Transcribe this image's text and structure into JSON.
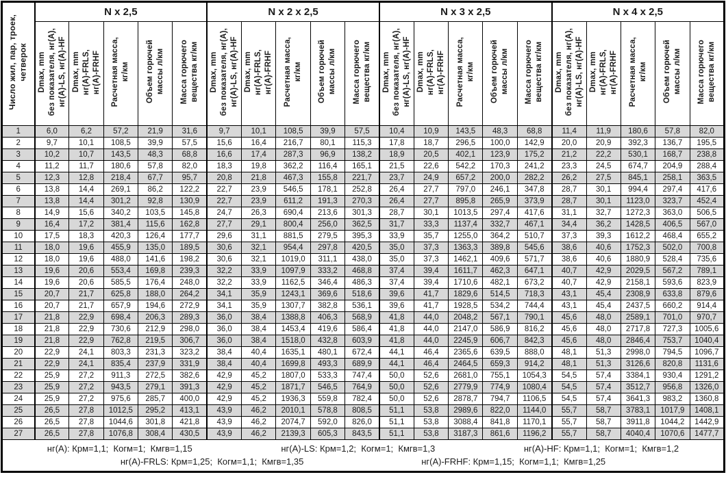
{
  "table": {
    "row_header": "Число жил, пар, троек,\nчетверок",
    "groups": [
      "N x 2,5",
      "N x 2 x 2,5",
      "N x 3 x 2,5",
      "N x 4 x 2,5"
    ],
    "col_headers": [
      "Dmax, mm\nбез показателя, нг(А),\nнг(А)-LS, нг(А)-HF",
      "Dmax, mm\nнг(А)-FRLS,\nнг(А)-FRHF",
      "Расчетная масса,\nкг/км",
      "Объем горючей\nмассы л/км",
      "Масса горючего\nвещества кг/км"
    ],
    "rows": [
      [
        "1",
        "6,0",
        "6,2",
        "57,2",
        "21,9",
        "31,6",
        "9,7",
        "10,1",
        "108,5",
        "39,9",
        "57,5",
        "10,4",
        "10,9",
        "143,5",
        "48,3",
        "68,8",
        "11,4",
        "11,9",
        "180,6",
        "57,8",
        "82,0"
      ],
      [
        "2",
        "9,7",
        "10,1",
        "108,5",
        "39,9",
        "57,5",
        "15,6",
        "16,4",
        "216,7",
        "80,1",
        "115,3",
        "17,8",
        "18,7",
        "296,5",
        "100,0",
        "142,9",
        "20,0",
        "20,9",
        "392,3",
        "136,7",
        "195,5"
      ],
      [
        "3",
        "10,2",
        "10,7",
        "143,5",
        "48,3",
        "68,8",
        "16,6",
        "17,4",
        "287,3",
        "96,9",
        "138,2",
        "18,9",
        "20,5",
        "402,1",
        "123,9",
        "175,2",
        "21,2",
        "22,2",
        "530,1",
        "168,7",
        "238,8"
      ],
      [
        "4",
        "11,2",
        "11,7",
        "180,6",
        "57,8",
        "82,0",
        "18,3",
        "19,8",
        "362,2",
        "116,4",
        "165,1",
        "21,5",
        "22,6",
        "542,2",
        "170,3",
        "241,2",
        "23,3",
        "24,5",
        "674,7",
        "204,9",
        "288,4"
      ],
      [
        "5",
        "12,3",
        "12,8",
        "218,4",
        "67,7",
        "95,7",
        "20,8",
        "21,8",
        "467,3",
        "155,8",
        "221,7",
        "23,7",
        "24,9",
        "657,2",
        "200,0",
        "282,2",
        "26,2",
        "27,5",
        "845,1",
        "258,1",
        "363,5"
      ],
      [
        "6",
        "13,8",
        "14,4",
        "269,1",
        "86,2",
        "122,2",
        "22,7",
        "23,9",
        "546,5",
        "178,1",
        "252,8",
        "26,4",
        "27,7",
        "797,0",
        "246,1",
        "347,8",
        "28,7",
        "30,1",
        "994,4",
        "297,4",
        "417,6"
      ],
      [
        "7",
        "13,8",
        "14,4",
        "301,2",
        "92,8",
        "130,9",
        "22,7",
        "23,9",
        "611,2",
        "191,3",
        "270,3",
        "26,4",
        "27,7",
        "895,8",
        "265,9",
        "373,9",
        "28,7",
        "30,1",
        "1123,0",
        "323,7",
        "452,4"
      ],
      [
        "8",
        "14,9",
        "15,6",
        "340,2",
        "103,5",
        "145,8",
        "24,7",
        "26,3",
        "690,4",
        "213,6",
        "301,3",
        "28,7",
        "30,1",
        "1013,5",
        "297,4",
        "417,6",
        "31,1",
        "32,7",
        "1272,3",
        "363,0",
        "506,5"
      ],
      [
        "9",
        "16,4",
        "17,2",
        "381,4",
        "115,6",
        "162,8",
        "27,7",
        "29,1",
        "800,4",
        "256,0",
        "362,5",
        "31,7",
        "33,3",
        "1137,4",
        "332,7",
        "467,1",
        "34,4",
        "36,2",
        "1428,5",
        "406,5",
        "567,0"
      ],
      [
        "10",
        "17,5",
        "18,3",
        "420,3",
        "126,4",
        "177,7",
        "29,6",
        "31,1",
        "881,5",
        "279,5",
        "395,3",
        "33,9",
        "35,7",
        "1255,0",
        "364,2",
        "510,7",
        "37,3",
        "39,3",
        "1612,2",
        "468,4",
        "655,2"
      ],
      [
        "11",
        "18,0",
        "19,6",
        "455,9",
        "135,0",
        "189,5",
        "30,6",
        "32,1",
        "954,4",
        "297,8",
        "420,5",
        "35,0",
        "37,3",
        "1363,3",
        "389,8",
        "545,6",
        "38,6",
        "40,6",
        "1752,3",
        "502,0",
        "700,8"
      ],
      [
        "12",
        "18,0",
        "19,6",
        "488,0",
        "141,6",
        "198,2",
        "30,6",
        "32,1",
        "1019,0",
        "311,1",
        "438,0",
        "35,0",
        "37,3",
        "1462,1",
        "409,6",
        "571,7",
        "38,6",
        "40,6",
        "1880,9",
        "528,4",
        "735,6"
      ],
      [
        "13",
        "19,6",
        "20,6",
        "553,4",
        "169,8",
        "239,3",
        "32,2",
        "33,9",
        "1097,9",
        "333,2",
        "468,8",
        "37,4",
        "39,4",
        "1611,7",
        "462,3",
        "647,1",
        "40,7",
        "42,9",
        "2029,5",
        "567,2",
        "789,1"
      ],
      [
        "14",
        "19,6",
        "20,6",
        "585,5",
        "176,4",
        "248,0",
        "32,2",
        "33,9",
        "1162,5",
        "346,4",
        "486,3",
        "37,4",
        "39,4",
        "1710,6",
        "482,1",
        "673,2",
        "40,7",
        "42,9",
        "2158,1",
        "593,6",
        "823,9"
      ],
      [
        "15",
        "20,7",
        "21,7",
        "625,8",
        "188,0",
        "264,2",
        "34,1",
        "35,9",
        "1243,1",
        "369,6",
        "518,6",
        "39,6",
        "41,7",
        "1829,6",
        "514,5",
        "718,3",
        "43,1",
        "45,4",
        "2308,9",
        "633,8",
        "879,6"
      ],
      [
        "16",
        "20,7",
        "21,7",
        "657,9",
        "194,6",
        "272,9",
        "34,1",
        "35,9",
        "1307,7",
        "382,8",
        "536,1",
        "39,6",
        "41,7",
        "1928,5",
        "534,2",
        "744,4",
        "43,1",
        "45,4",
        "2437,5",
        "660,2",
        "914,4"
      ],
      [
        "17",
        "21,8",
        "22,9",
        "698,4",
        "206,3",
        "289,3",
        "36,0",
        "38,4",
        "1388,8",
        "406,3",
        "568,9",
        "41,8",
        "44,0",
        "2048,2",
        "567,1",
        "790,1",
        "45,6",
        "48,0",
        "2589,1",
        "701,0",
        "970,7"
      ],
      [
        "18",
        "21,8",
        "22,9",
        "730,6",
        "212,9",
        "298,0",
        "36,0",
        "38,4",
        "1453,4",
        "419,6",
        "586,4",
        "41,8",
        "44,0",
        "2147,0",
        "586,9",
        "816,2",
        "45,6",
        "48,0",
        "2717,8",
        "727,3",
        "1005,6"
      ],
      [
        "19",
        "21,8",
        "22,9",
        "762,8",
        "219,5",
        "306,7",
        "36,0",
        "38,4",
        "1518,0",
        "432,8",
        "603,9",
        "41,8",
        "44,0",
        "2245,9",
        "606,7",
        "842,3",
        "45,6",
        "48,0",
        "2846,4",
        "753,7",
        "1040,4"
      ],
      [
        "20",
        "22,9",
        "24,1",
        "803,3",
        "231,3",
        "323,2",
        "38,4",
        "40,4",
        "1635,1",
        "480,1",
        "672,4",
        "44,1",
        "46,4",
        "2365,6",
        "639,5",
        "888,0",
        "48,1",
        "51,3",
        "2998,0",
        "794,5",
        "1096,7"
      ],
      [
        "21",
        "22,9",
        "24,1",
        "835,4",
        "237,9",
        "331,9",
        "38,4",
        "40,4",
        "1699,8",
        "493,3",
        "689,9",
        "44,1",
        "46,4",
        "2464,5",
        "659,3",
        "914,2",
        "48,1",
        "51,3",
        "3126,6",
        "820,8",
        "1131,6"
      ],
      [
        "22",
        "25,9",
        "27,2",
        "911,3",
        "272,5",
        "382,6",
        "42,9",
        "45,2",
        "1807,0",
        "533,3",
        "747,4",
        "50,0",
        "52,6",
        "2681,0",
        "755,1",
        "1054,3",
        "54,5",
        "57,4",
        "3384,1",
        "930,4",
        "1291,2"
      ],
      [
        "23",
        "25,9",
        "27,2",
        "943,5",
        "279,1",
        "391,3",
        "42,9",
        "45,2",
        "1871,7",
        "546,5",
        "764,9",
        "50,0",
        "52,6",
        "2779,9",
        "774,9",
        "1080,4",
        "54,5",
        "57,4",
        "3512,7",
        "956,8",
        "1326,0"
      ],
      [
        "24",
        "25,9",
        "27,2",
        "975,6",
        "285,7",
        "400,0",
        "42,9",
        "45,2",
        "1936,3",
        "559,8",
        "782,4",
        "50,0",
        "52,6",
        "2878,7",
        "794,7",
        "1106,5",
        "54,5",
        "57,4",
        "3641,3",
        "983,2",
        "1360,8"
      ],
      [
        "25",
        "26,5",
        "27,8",
        "1012,5",
        "295,2",
        "413,1",
        "43,9",
        "46,2",
        "2010,1",
        "578,8",
        "808,5",
        "51,1",
        "53,8",
        "2989,6",
        "822,0",
        "1144,0",
        "55,7",
        "58,7",
        "3783,1",
        "1017,9",
        "1408,1"
      ],
      [
        "26",
        "26,5",
        "27,8",
        "1044,6",
        "301,8",
        "421,8",
        "43,9",
        "46,2",
        "2074,7",
        "592,0",
        "826,0",
        "51,1",
        "53,8",
        "3088,4",
        "841,8",
        "1170,1",
        "55,7",
        "58,7",
        "3911,8",
        "1044,2",
        "1442,9"
      ],
      [
        "27",
        "26,5",
        "27,8",
        "1076,8",
        "308,4",
        "430,5",
        "43,9",
        "46,2",
        "2139,3",
        "605,3",
        "843,5",
        "51,1",
        "53,8",
        "3187,3",
        "861,6",
        "1196,2",
        "55,7",
        "58,7",
        "4040,4",
        "1070,6",
        "1477,7"
      ]
    ]
  },
  "footer": {
    "line1": [
      "нг(А): Крм=1,1;  Когм=1;  Кмгв=1,15",
      "нг(А)-LS: Крм=1,2;  Когм=1;  Кмгв=1,3",
      "нг(А)-HF: Крм=1,1;  Когм=1;  Кмгв=1,2"
    ],
    "line2": [
      "нг(А)-FRLS: Крм=1,25;  Когм=1,1;  Кмгв=1,35",
      "нг(А)-FRHF: Крм=1,15;  Когм=1,1;  Кмгв=1,25"
    ]
  },
  "colors": {
    "stripe_gray": "#d8d8d8",
    "border_black": "#000000",
    "background": "#ffffff"
  }
}
